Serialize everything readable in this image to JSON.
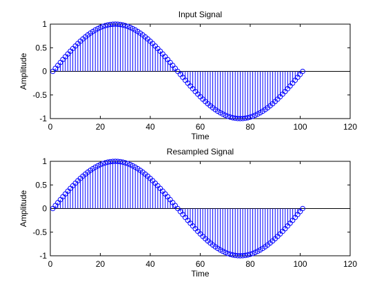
{
  "chart_data": [
    {
      "type": "stem",
      "title": "Input Signal",
      "xlabel": "Time",
      "ylabel": "Amplitude",
      "xlim": [
        0,
        120
      ],
      "ylim": [
        -1,
        1
      ],
      "xticks": [
        0,
        20,
        40,
        60,
        80,
        100,
        120
      ],
      "yticks": [
        -1,
        -0.5,
        0,
        0.5,
        1
      ],
      "grid": false,
      "series": [
        {
          "marker": "circle",
          "color": "#0000ff",
          "x_start": 1,
          "x_end": 101,
          "function": "sin(2*pi*(x-1)/100)"
        }
      ]
    },
    {
      "type": "stem",
      "title": "Resampled Signal",
      "xlabel": "Time",
      "ylabel": "Amplitude",
      "xlim": [
        0,
        120
      ],
      "ylim": [
        -1,
        1
      ],
      "xticks": [
        0,
        20,
        40,
        60,
        80,
        100,
        120
      ],
      "yticks": [
        -1,
        -0.5,
        0,
        0.5,
        1
      ],
      "grid": false,
      "series": [
        {
          "marker": "circle",
          "color": "#0000ff",
          "x_start": 1,
          "x_end": 101,
          "function": "sin(2*pi*(x-1)/100)"
        }
      ]
    }
  ]
}
